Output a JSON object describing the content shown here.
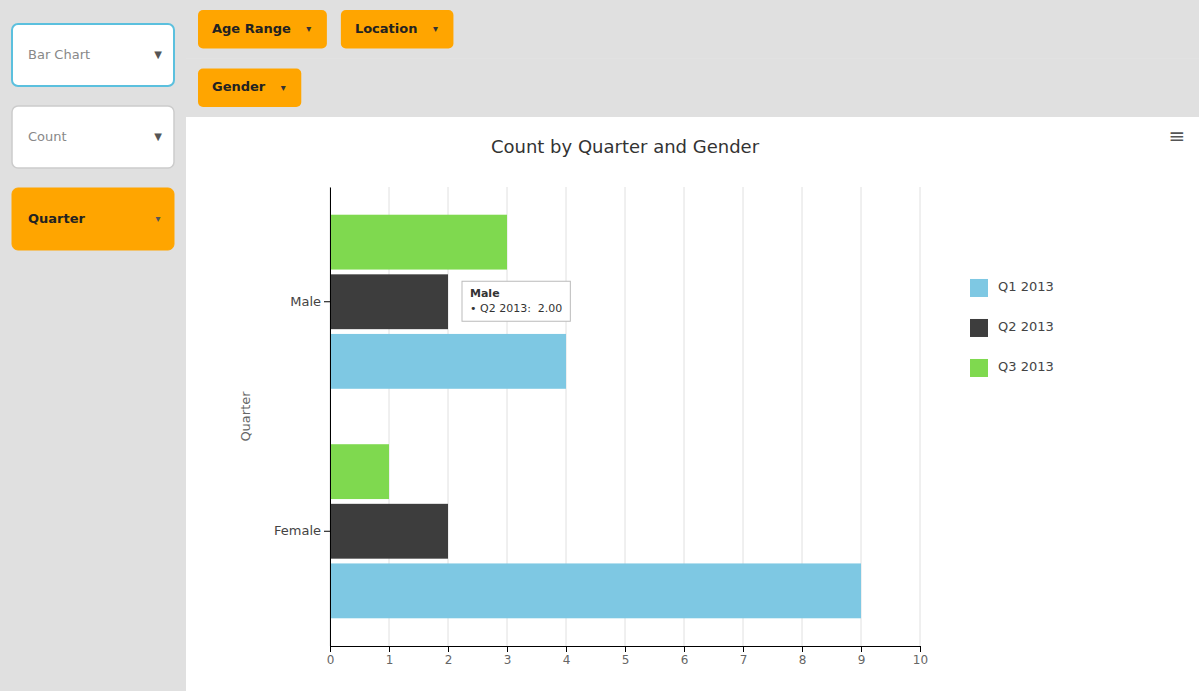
{
  "chart_data": {
    "type": "bar",
    "orientation": "horizontal",
    "title": "Count by Quarter and Gender",
    "ylabel": "Quarter",
    "categories": [
      "Male",
      "Female"
    ],
    "series": [
      {
        "name": "Q1 2013",
        "color": "#7EC8E3",
        "values": [
          4,
          9
        ]
      },
      {
        "name": "Q2 2013",
        "color": "#3D3D3D",
        "values": [
          2,
          2
        ]
      },
      {
        "name": "Q3 2013",
        "color": "#7FD94F",
        "values": [
          3,
          1
        ]
      }
    ],
    "xlim": [
      0,
      10
    ],
    "xticks": [
      0,
      1,
      2,
      3,
      4,
      5,
      6,
      7,
      8,
      9,
      10
    ],
    "grid": true,
    "legend": "right",
    "annotations": [
      {
        "text": "Male\n• Q2 2013:  2.00",
        "x": 2,
        "category": "Male",
        "series": "Q2 2013"
      }
    ]
  },
  "ui": {
    "sidebar": [
      {
        "label": "Bar Chart",
        "icon": "▼"
      },
      {
        "label": "Count",
        "icon": "▼"
      },
      {
        "label": "Quarter",
        "icon": "▾"
      }
    ],
    "toolbar": [
      [
        {
          "label": "Age Range",
          "icon": "▾"
        },
        {
          "label": "Location",
          "icon": "▾"
        }
      ],
      [
        {
          "label": "Gender",
          "icon": "▾"
        }
      ]
    ],
    "menu_icon": "≡"
  }
}
